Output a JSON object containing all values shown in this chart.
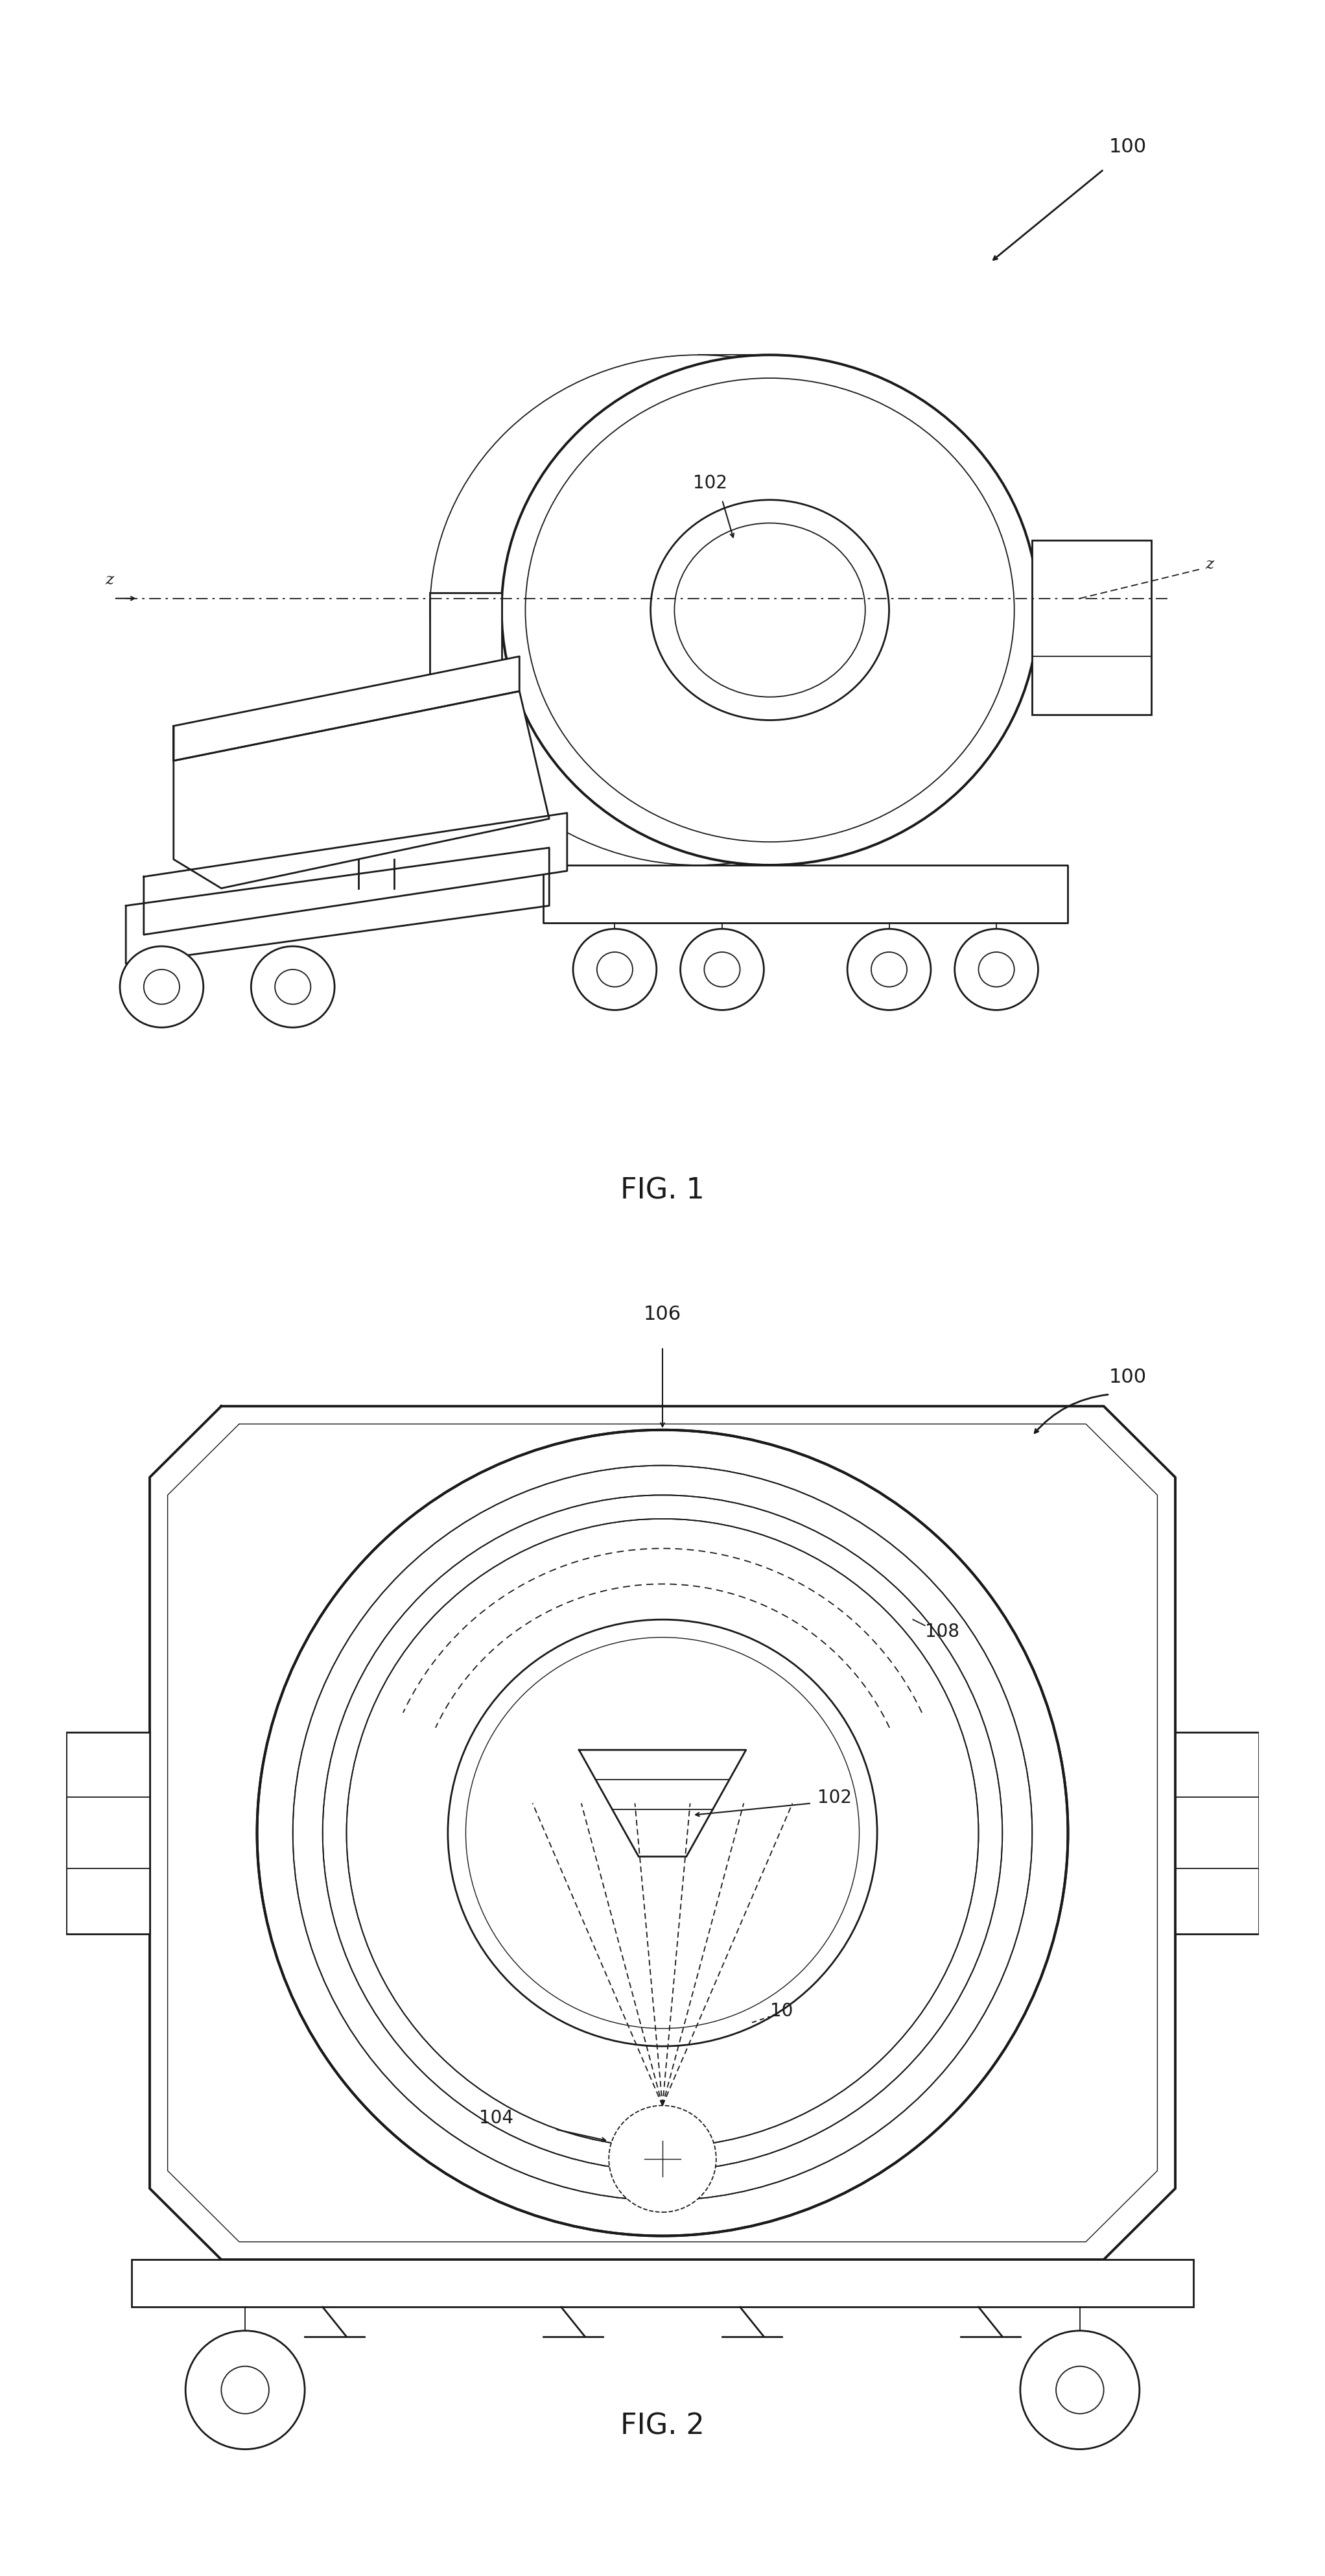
{
  "fig_width": 20.44,
  "fig_height": 39.73,
  "bg_color": "#ffffff",
  "line_color": "#1a1a1a",
  "fig1_label": "FIG. 1",
  "fig2_label": "FIG. 2",
  "label_100_fig1": "100",
  "label_102_fig1": "102",
  "label_z_left": "z",
  "label_z_right": "z",
  "label_100_fig2": "100",
  "label_106": "106",
  "label_108": "108",
  "label_102_fig2": "102",
  "label_104": "104",
  "label_10": "10"
}
